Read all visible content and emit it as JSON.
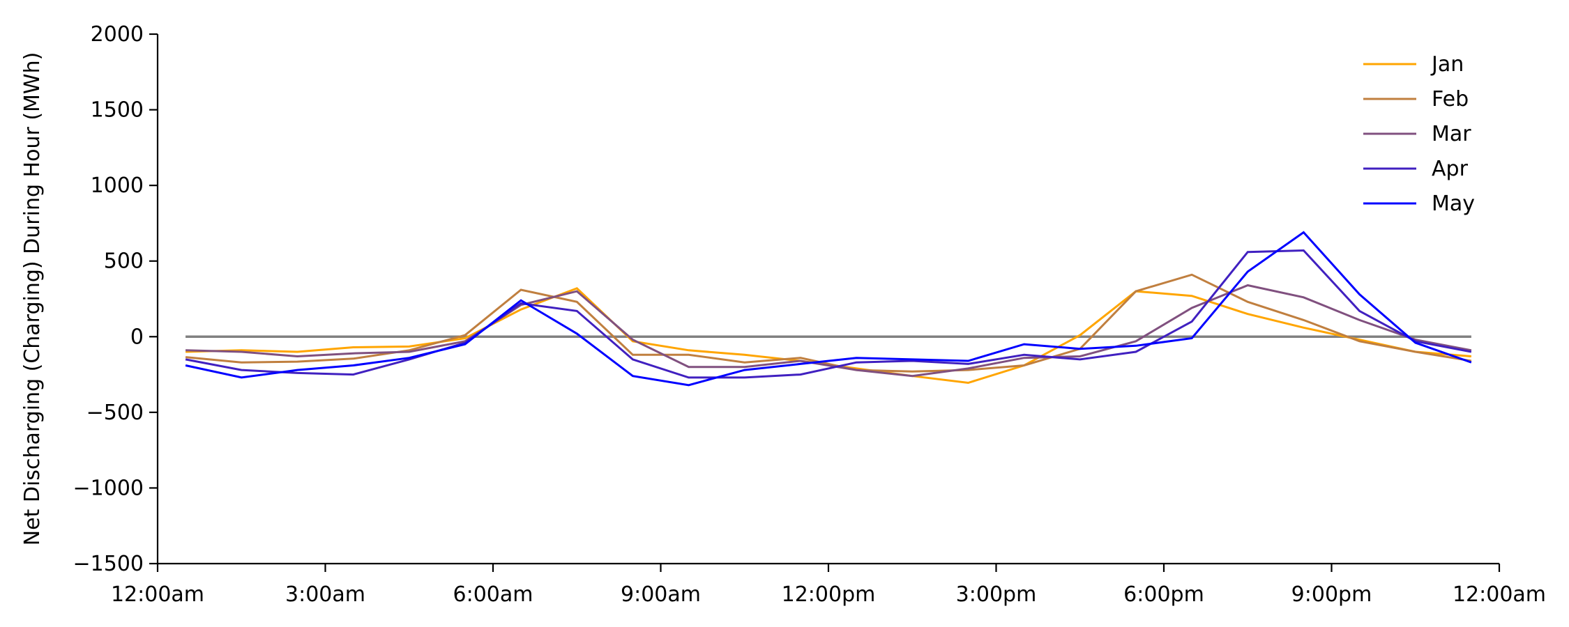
{
  "chart_data": {
    "type": "line",
    "title": "",
    "xlabel": "",
    "ylabel": "Net Discharging (Charging) During Hour (MWh)",
    "ylim": [
      -1500,
      2000
    ],
    "xlim": [
      0,
      24
    ],
    "x_ticks": [
      {
        "value": 0,
        "label": "12:00am"
      },
      {
        "value": 3,
        "label": "3:00am"
      },
      {
        "value": 6,
        "label": "6:00am"
      },
      {
        "value": 9,
        "label": "9:00am"
      },
      {
        "value": 12,
        "label": "12:00pm"
      },
      {
        "value": 15,
        "label": "3:00pm"
      },
      {
        "value": 18,
        "label": "6:00pm"
      },
      {
        "value": 21,
        "label": "9:00pm"
      },
      {
        "value": 24,
        "label": "12:00am"
      }
    ],
    "y_ticks": [
      -1500,
      -1000,
      -500,
      0,
      500,
      1000,
      1500,
      2000
    ],
    "grid": false,
    "legend_position": "top-right",
    "reference_line": {
      "y": 0,
      "x_range": [
        0.5,
        23.5
      ],
      "color": "#808080"
    },
    "x": [
      0.5,
      1.5,
      2.5,
      3.5,
      4.5,
      5.5,
      6.5,
      7.5,
      8.5,
      9.5,
      10.5,
      11.5,
      12.5,
      13.5,
      14.5,
      15.5,
      16.5,
      17.5,
      18.5,
      19.5,
      20.5,
      21.5,
      22.5,
      23.5
    ],
    "series": [
      {
        "name": "Jan",
        "color": "#FFA500",
        "values": [
          -100,
          -90,
          -100,
          -70,
          -65,
          -10,
          180,
          320,
          -30,
          -90,
          -120,
          -160,
          -210,
          -260,
          -305,
          -190,
          10,
          300,
          270,
          150,
          60,
          -20,
          -100,
          -130
        ]
      },
      {
        "name": "Feb",
        "color": "#C07F3F",
        "values": [
          -135,
          -170,
          -165,
          -145,
          -90,
          10,
          310,
          230,
          -120,
          -120,
          -170,
          -140,
          -220,
          -230,
          -220,
          -190,
          -80,
          300,
          410,
          230,
          110,
          -30,
          -100,
          -160
        ]
      },
      {
        "name": "Mar",
        "color": "#80507F",
        "values": [
          -90,
          -100,
          -130,
          -110,
          -100,
          -30,
          210,
          300,
          -20,
          -200,
          -200,
          -160,
          -220,
          -260,
          -210,
          -140,
          -130,
          -30,
          190,
          340,
          260,
          110,
          -20,
          -90
        ]
      },
      {
        "name": "Apr",
        "color": "#4020C0",
        "values": [
          -150,
          -220,
          -240,
          -250,
          -150,
          -40,
          220,
          170,
          -150,
          -270,
          -270,
          -250,
          -170,
          -160,
          -180,
          -120,
          -150,
          -100,
          100,
          560,
          570,
          170,
          -30,
          -100
        ]
      },
      {
        "name": "May",
        "color": "#0000FF",
        "values": [
          -190,
          -270,
          -220,
          -190,
          -140,
          -50,
          240,
          20,
          -260,
          -320,
          -220,
          -180,
          -140,
          -150,
          -160,
          -50,
          -80,
          -60,
          -10,
          430,
          690,
          280,
          -40,
          -170
        ]
      }
    ]
  }
}
